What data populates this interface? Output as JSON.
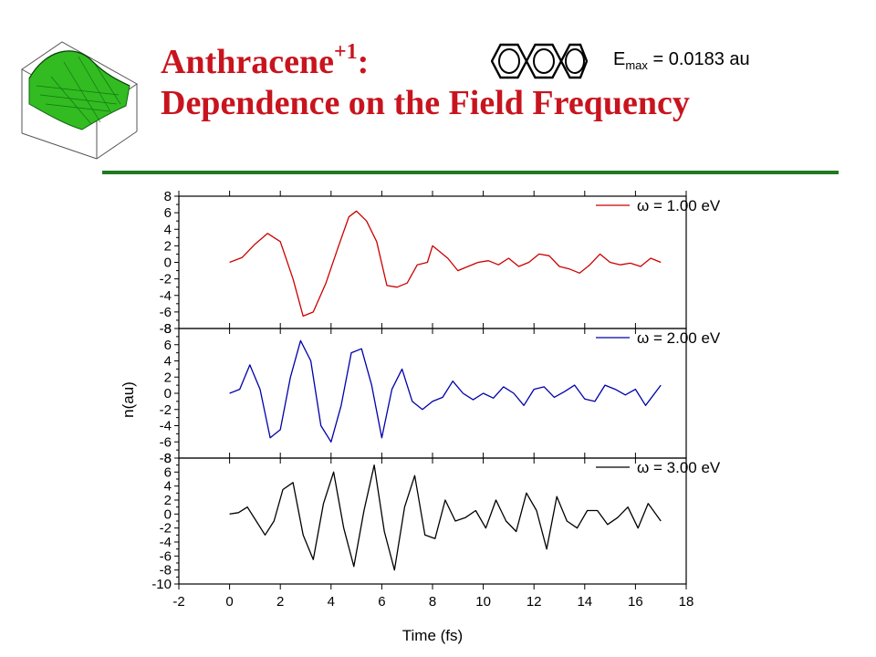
{
  "slide": {
    "title_main": "Anthracene",
    "title_sup": "+1",
    "title_colon": ":",
    "title_line2": "Dependence on the Field Frequency",
    "emax_label": "E",
    "emax_sub": "max",
    "emax_value": " = 0.0183 au",
    "title_color": "#c8141e",
    "rule_color": "#1f7a1f",
    "logo_icon": "surface-plot-icon",
    "molecule_icon": "anthracene-icon"
  },
  "chart_data": {
    "type": "line",
    "xlabel": "Time (fs)",
    "ylabel": "n(au)",
    "xlim": [
      -2,
      18
    ],
    "x_ticks": [
      "-2",
      "0",
      "2",
      "4",
      "6",
      "8",
      "10",
      "12",
      "14",
      "16",
      "18"
    ],
    "panels": [
      {
        "legend": "ω = 1.00 eV",
        "color": "#cc0000",
        "ylim": [
          -8,
          8
        ],
        "y_ticks": [
          "8",
          "6",
          "4",
          "2",
          "0",
          "-2",
          "-4",
          "-6",
          "-8"
        ],
        "series": [
          {
            "x": [
              0,
              0.5,
              1.0,
              1.5,
              2.0,
              2.5,
              2.9,
              3.3,
              3.8,
              4.3,
              4.7,
              5.0,
              5.4,
              5.8,
              6.2,
              6.6,
              7.0,
              7.4,
              7.8,
              8.0,
              8.2,
              8.6,
              9.0,
              9.4,
              9.8,
              10.2,
              10.6,
              11.0,
              11.4,
              11.8,
              12.2,
              12.6,
              13.0,
              13.4,
              13.8,
              14.2,
              14.6,
              15.0,
              15.4,
              15.8,
              16.2,
              16.6,
              17.0
            ],
            "y": [
              0,
              0.6,
              2.2,
              3.5,
              2.5,
              -2.0,
              -6.5,
              -6.0,
              -2.5,
              2.0,
              5.5,
              6.2,
              5.0,
              2.5,
              -2.8,
              -3.0,
              -2.5,
              -0.3,
              0,
              2.0,
              1.5,
              0.5,
              -1.0,
              -0.5,
              0,
              0.2,
              -0.3,
              0.5,
              -0.5,
              0,
              1.0,
              0.8,
              -0.5,
              -0.8,
              -1.3,
              -0.3,
              1.0,
              0,
              -0.3,
              -0.1,
              -0.5,
              0.5,
              0
            ]
          }
        ]
      },
      {
        "legend": "ω = 2.00 eV",
        "color": "#0000aa",
        "ylim": [
          -8,
          8
        ],
        "y_ticks": [
          "8",
          "6",
          "4",
          "2",
          "0",
          "-2",
          "-4",
          "-6",
          "-8"
        ],
        "series": [
          {
            "x": [
              0,
              0.4,
              0.8,
              1.2,
              1.6,
              2.0,
              2.4,
              2.8,
              3.2,
              3.6,
              4.0,
              4.4,
              4.8,
              5.2,
              5.6,
              6.0,
              6.4,
              6.8,
              7.2,
              7.6,
              8.0,
              8.4,
              8.8,
              9.2,
              9.6,
              10.0,
              10.4,
              10.8,
              11.2,
              11.6,
              12.0,
              12.4,
              12.8,
              13.2,
              13.6,
              14.0,
              14.4,
              14.8,
              15.2,
              15.6,
              16.0,
              16.4,
              17.0
            ],
            "y": [
              0,
              0.5,
              3.5,
              0.5,
              -5.5,
              -4.5,
              2.0,
              6.5,
              4.0,
              -4.0,
              -6.0,
              -1.5,
              5.0,
              5.5,
              1.0,
              -5.5,
              0.5,
              3.0,
              -1.0,
              -2.0,
              -1.0,
              -0.5,
              1.5,
              0,
              -0.8,
              0,
              -0.6,
              0.8,
              0,
              -1.5,
              0.5,
              0.8,
              -0.5,
              0.2,
              1.0,
              -0.7,
              -1.0,
              1.0,
              0.5,
              -0.2,
              0.5,
              -1.5,
              1.0
            ]
          }
        ]
      },
      {
        "legend": "ω = 3.00 eV",
        "color": "#000000",
        "ylim": [
          -10,
          8
        ],
        "y_ticks": [
          "8",
          "6",
          "4",
          "2",
          "0",
          "-2",
          "-4",
          "-6",
          "-8",
          "-10"
        ],
        "series": [
          {
            "x": [
              0,
              0.35,
              0.7,
              1.05,
              1.4,
              1.75,
              2.1,
              2.5,
              2.9,
              3.3,
              3.7,
              4.1,
              4.5,
              4.9,
              5.3,
              5.7,
              6.1,
              6.5,
              6.9,
              7.3,
              7.7,
              8.1,
              8.5,
              8.9,
              9.3,
              9.7,
              10.1,
              10.5,
              10.9,
              11.3,
              11.7,
              12.1,
              12.5,
              12.9,
              13.3,
              13.7,
              14.1,
              14.5,
              14.9,
              15.3,
              15.7,
              16.1,
              16.5,
              17.0
            ],
            "y": [
              0,
              0.2,
              1.0,
              -1.0,
              -3.0,
              -1.0,
              3.5,
              4.5,
              -3.0,
              -6.5,
              1.5,
              6.0,
              -2.0,
              -7.5,
              0.5,
              7.0,
              -2.5,
              -8.0,
              1.0,
              5.5,
              -3.0,
              -3.5,
              2.0,
              -1.0,
              -0.5,
              0.5,
              -2.0,
              2.0,
              -1.0,
              -2.5,
              3.0,
              0.5,
              -5.0,
              2.5,
              -1.0,
              -2.0,
              0.5,
              0.5,
              -1.5,
              -0.5,
              1.0,
              -2.0,
              1.5,
              -1.0
            ]
          }
        ]
      }
    ]
  }
}
